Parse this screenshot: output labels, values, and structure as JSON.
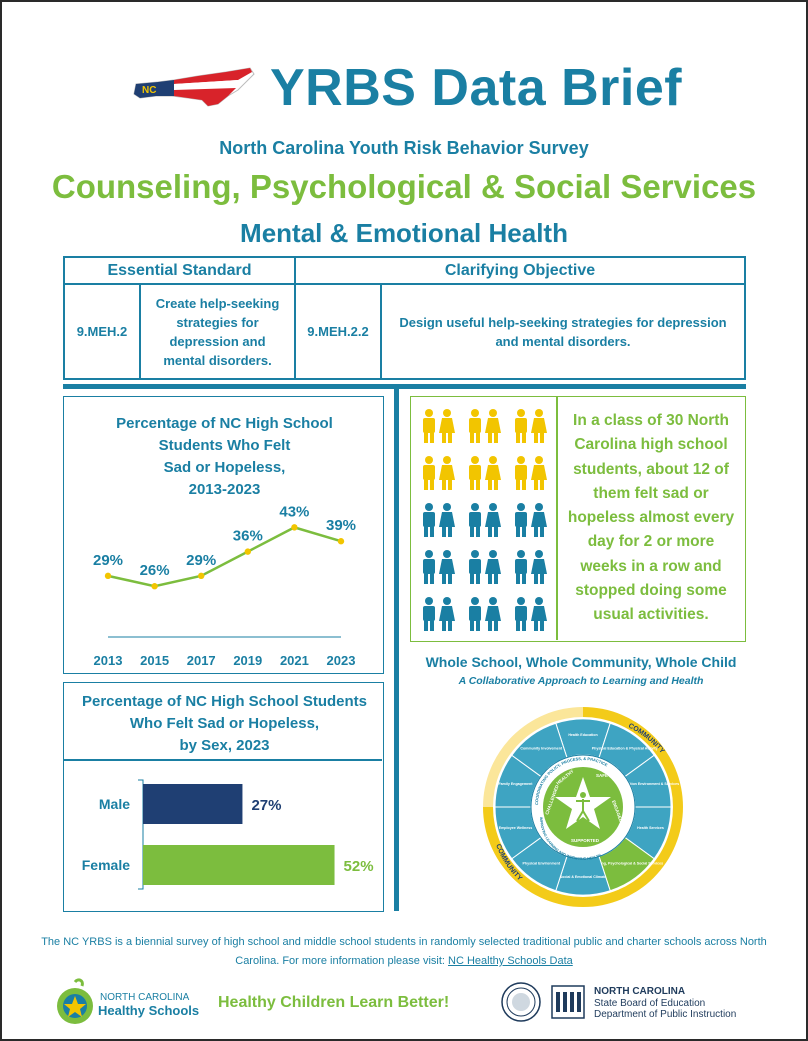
{
  "header": {
    "title": "YRBS Data Brief",
    "survey_name": "North Carolina Youth Risk Behavior Survey",
    "topic": "Counseling, Psychological & Social Services",
    "subtopic": "Mental & Emotional Health",
    "map_letters": "NC"
  },
  "standards": {
    "essential_header": "Essential Standard",
    "clarifying_header": "Clarifying Objective",
    "essential_code": "9.MEH.2",
    "essential_text": "Create help-seeking strategies for depression and mental disorders.",
    "clarifying_code": "9.MEH.2.2",
    "clarifying_text": "Design useful help-seeking strategies for depression and mental disorders."
  },
  "colors": {
    "teal": "#1a7fa3",
    "green": "#7cbd3e",
    "yellow": "#f2c500",
    "navy": "#1f3f73"
  },
  "chart_data": [
    {
      "type": "line",
      "title": "Percentage of NC High School Students Who Felt Sad or Hopeless, 2013-2023",
      "title_lines": [
        "Percentage of NC High School",
        "Students Who Felt",
        "Sad or Hopeless,",
        "2013-2023"
      ],
      "x": [
        "2013",
        "2015",
        "2017",
        "2019",
        "2021",
        "2023"
      ],
      "values": [
        29,
        26,
        29,
        36,
        43,
        39
      ],
      "labels": [
        "29%",
        "26%",
        "29%",
        "36%",
        "43%",
        "39%"
      ],
      "xlabel": "",
      "ylabel": "",
      "ylim": [
        20,
        46
      ]
    },
    {
      "type": "bar",
      "title": "Percentage of NC High School Students Who Felt Sad or Hopeless, by Sex, 2023",
      "title_lines": [
        "Percentage of NC High School Students",
        "Who Felt Sad or Hopeless,",
        "by Sex, 2023"
      ],
      "categories": [
        "Male",
        "Female"
      ],
      "values": [
        27,
        52
      ],
      "labels": [
        "27%",
        "52%"
      ],
      "colors": [
        "#1f3f73",
        "#7cbd3e"
      ],
      "xlim": [
        0,
        60
      ]
    }
  ],
  "icon_array": {
    "total": 30,
    "highlighted": 12,
    "text_lines": [
      "In a class of 30 North",
      "Carolina high school",
      "students, about 12 of",
      "them felt sad or",
      "hopeless almost every",
      "day for 2 or more",
      "weeks in a row and",
      "stopped doing some",
      "usual activities."
    ]
  },
  "wscc": {
    "title": "Whole School, Whole Community, Whole Child",
    "subtitle": "A Collaborative Approach to Learning and Health",
    "community_label": "COMMUNITY",
    "center_values": [
      "HEALTHY",
      "SAFE",
      "ENGAGED",
      "SUPPORTED",
      "CHALLENGED"
    ],
    "ring_text": "COORDINATING POLICY, PROCESS, & PRACTICE",
    "ring_text_bottom": "IMPROVING LEARNING AND IMPROVING HEALTH",
    "segments": [
      "Health Education",
      "Physical Education & Physical Activity",
      "Nutrition Environment & Services",
      "Health Services",
      "Counseling, Psychological & Social Services",
      "Social & Emotional Climate",
      "Physical Environment",
      "Employee Wellness",
      "Family Engagement",
      "Community Involvement"
    ]
  },
  "footer": {
    "note_text": "The NC YRBS is a biennial survey of high school and middle school students in randomly selected traditional public and charter schools across North Carolina. For more information please visit:",
    "link_text": "NC Healthy Schools Data",
    "nchs_line1": "NORTH CAROLINA",
    "nchs_line2": "Healthy Schools",
    "tagline": "Healthy Children Learn Better!",
    "dpi_line1": "NORTH CAROLINA",
    "dpi_line2": "State Board of Education",
    "dpi_line3": "Department of Public Instruction"
  }
}
